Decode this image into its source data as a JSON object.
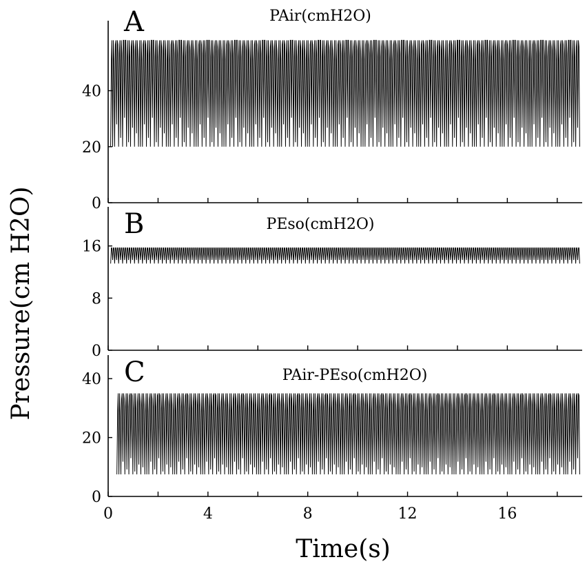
{
  "chart_data": {
    "type": "line",
    "xlabel": "Time(s)",
    "ylabel": "Pressure(cm H2O)",
    "xlim": [
      0,
      19
    ],
    "x_ticks": [
      0,
      4,
      8,
      12,
      16
    ],
    "x_minor_ticks": [
      2,
      6,
      10,
      14,
      18
    ],
    "grid": false,
    "panels": [
      {
        "letter": "A",
        "title": "PAir(cmH2O)",
        "ylim": [
          0,
          65
        ],
        "y_ticks": [
          0,
          20,
          40
        ],
        "series": [
          {
            "x_start": 0.1,
            "x_end": 18.9,
            "cycles": 118,
            "min": 20,
            "max": 58,
            "mean": 43,
            "amplitude_pattern": [
              0,
              20,
              8,
              26,
              4,
              17,
              12
            ]
          }
        ]
      },
      {
        "letter": "B",
        "title": "PEso(cmH2O)",
        "ylim": [
          0,
          22
        ],
        "y_ticks": [
          0,
          8,
          16
        ],
        "series": [
          {
            "x_start": 0.1,
            "x_end": 18.9,
            "cycles": 118,
            "min": 13.3,
            "max": 15.7,
            "mean": 14.5,
            "amplitude_pattern": [
              1,
              1,
              1
            ]
          }
        ]
      },
      {
        "letter": "C",
        "title": "PAir-PEso(cmH2O)",
        "ylim": [
          0,
          48
        ],
        "y_ticks": [
          0,
          20,
          40
        ],
        "series": [
          {
            "x_start": 0.35,
            "x_end": 18.9,
            "cycles": 116,
            "min": 7.5,
            "max": 35,
            "mean": 21.25,
            "amplitude_pattern": [
              0,
              18,
              7,
              23,
              4,
              14,
              10
            ]
          }
        ]
      }
    ]
  }
}
